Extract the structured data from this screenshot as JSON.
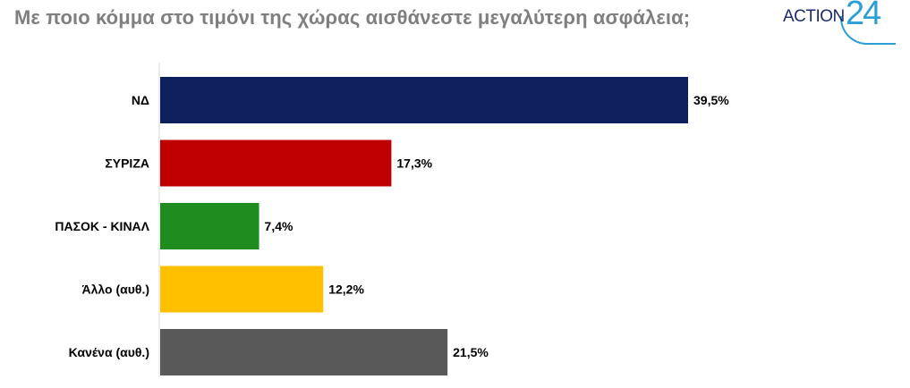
{
  "header": {
    "title": "Με ποιο κόμμα στο τιμόνι της χώρας αισθάνεστε μεγαλύτερη ασφάλεια;",
    "logo_text": "ACTION",
    "logo_number": "24"
  },
  "chart_data": {
    "type": "bar",
    "orientation": "horizontal",
    "categories": [
      "ΝΔ",
      "ΣΥΡΙΖΑ",
      "ΠΑΣΟΚ - ΚΙΝΑΛ",
      "Άλλο (αυθ.)",
      "Κανένα (αυθ.)"
    ],
    "values": [
      39.5,
      17.3,
      7.4,
      12.2,
      21.5
    ],
    "value_labels": [
      "39,5%",
      "17,3%",
      "7,4%",
      "12,2%",
      "21,5%"
    ],
    "colors": [
      "#0d1f5c",
      "#c00000",
      "#1e8c1e",
      "#ffc000",
      "#595959"
    ],
    "xlim": [
      0,
      39.5
    ],
    "grid": false,
    "legend": "none",
    "title": "Με ποιο κόμμα στο τιμόνι της χώρας αισθάνεστε μεγαλύτερη ασφάλεια;",
    "xlabel": "",
    "ylabel": ""
  }
}
